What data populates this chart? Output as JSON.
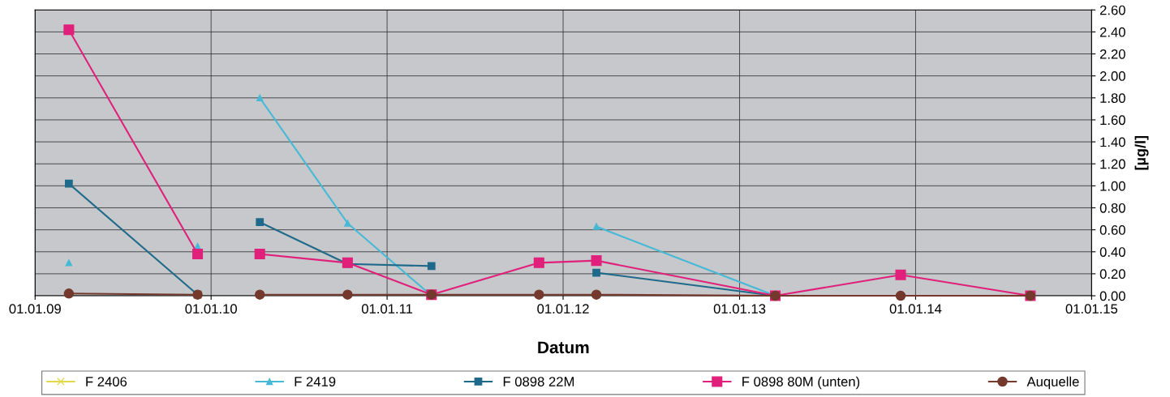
{
  "chart_data": {
    "type": "line",
    "xlabel": "Datum",
    "ylabel": "[µg/l]",
    "x": [
      "2009-03-12",
      "2009-12-04",
      "2010-02-01",
      "2010-04-12",
      "2010-10-11",
      "2011-04-03",
      "2011-11-12",
      "2012-03-10",
      "2013-03-16",
      "2013-12-01",
      "2014-08-27"
    ],
    "series": [
      {
        "name": "F 2406",
        "color": "#e3d84a",
        "marker": "cross",
        "values": [
          null,
          null,
          null,
          null,
          null,
          null,
          null,
          null,
          null,
          null,
          null
        ]
      },
      {
        "name": "F 2419",
        "color": "#45b9d6",
        "marker": "triangle",
        "x": [
          "2009-03-12",
          "2009-08-01",
          "2009-12-04",
          "2010-02-01",
          "2010-04-12",
          "2010-10-11",
          "2011-04-03",
          "2011-11-12",
          "2012-03-10",
          "2013-03-16",
          "2013-12-01"
        ],
        "values": [
          0.3,
          null,
          0.45,
          null,
          1.8,
          0.66,
          0.0,
          null,
          0.63,
          0.0,
          0.0
        ]
      },
      {
        "name": "F 0898 22M",
        "color": "#1f6a8a",
        "marker": "square",
        "values": [
          1.02,
          0.01,
          null,
          0.67,
          0.29,
          0.27,
          null,
          0.21,
          0.0,
          null,
          null
        ]
      },
      {
        "name": "F 0898 80M (unten)",
        "color": "#e0207a",
        "marker": "square",
        "values": [
          2.42,
          0.38,
          null,
          0.38,
          0.3,
          0.01,
          0.3,
          0.32,
          0.0,
          0.19,
          0.0
        ]
      },
      {
        "name": "Auquelle",
        "color": "#74392c",
        "marker": "circle",
        "values": [
          0.02,
          0.01,
          null,
          0.01,
          0.01,
          0.01,
          0.01,
          0.01,
          0.0,
          0.0,
          0.0
        ]
      }
    ],
    "xlim": [
      "2009-01-01",
      "2015-01-01"
    ],
    "xticks": [
      {
        "value": "2009-01-01",
        "label": "01.01.09"
      },
      {
        "value": "2010-01-01",
        "label": "01.01.10"
      },
      {
        "value": "2011-01-01",
        "label": "01.01.11"
      },
      {
        "value": "2012-01-01",
        "label": "01.01.12"
      },
      {
        "value": "2013-01-01",
        "label": "01.01.13"
      },
      {
        "value": "2014-01-01",
        "label": "01.01.14"
      },
      {
        "value": "2015-01-01",
        "label": "01.01.15"
      }
    ],
    "ylim": [
      0,
      2.6
    ],
    "yticks": [
      {
        "value": 0,
        "label": "0.00"
      },
      {
        "value": 0.2,
        "label": "0.20"
      },
      {
        "value": 0.4,
        "label": "0.40"
      },
      {
        "value": 0.6,
        "label": "0.60"
      },
      {
        "value": 0.8,
        "label": "0.80"
      },
      {
        "value": 1.0,
        "label": "1.00"
      },
      {
        "value": 1.2,
        "label": "1.20"
      },
      {
        "value": 1.4,
        "label": "1.40"
      },
      {
        "value": 1.6,
        "label": "1.60"
      },
      {
        "value": 1.8,
        "label": "1.80"
      },
      {
        "value": 2.0,
        "label": "2.00"
      },
      {
        "value": 2.2,
        "label": "2.20"
      },
      {
        "value": 2.4,
        "label": "2.40"
      },
      {
        "value": 2.6,
        "label": "2.60"
      }
    ],
    "grid": true,
    "legend": "bottom",
    "line_style": "solid"
  }
}
